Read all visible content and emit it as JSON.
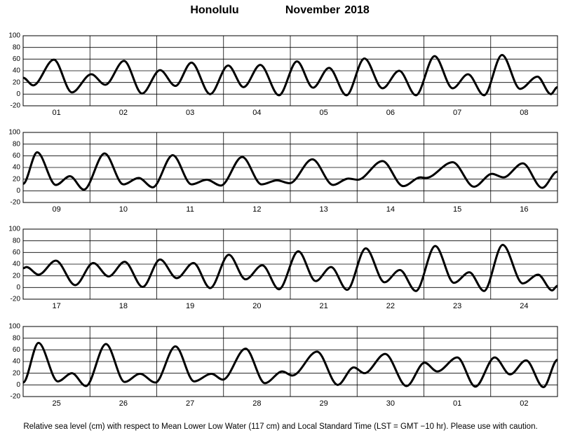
{
  "title": {
    "place": "Honolulu",
    "month": "November",
    "year": "2018"
  },
  "footnote": "Relative sea level (cm) with respect to Mean Lower Low Water (117 cm) and Local Standard Time (LST = GMT −10 hr). Please use with caution.",
  "chart_data": [
    {
      "type": "line",
      "color": "#000000",
      "grid": true,
      "xlim": [
        0,
        8
      ],
      "ylim": [
        -20,
        100
      ],
      "yticks": [
        -20,
        0,
        20,
        40,
        60,
        80,
        100
      ],
      "xticks": [
        {
          "value": 0.5,
          "label": "01"
        },
        {
          "value": 1.5,
          "label": "02"
        },
        {
          "value": 2.5,
          "label": "03"
        },
        {
          "value": 3.5,
          "label": "04"
        },
        {
          "value": 4.5,
          "label": "05"
        },
        {
          "value": 5.5,
          "label": "06"
        },
        {
          "value": 6.5,
          "label": "07"
        },
        {
          "value": 7.5,
          "label": "08"
        }
      ],
      "x": [
        0,
        0.15,
        0.46,
        0.73,
        1.02,
        1.23,
        1.51,
        1.78,
        2.05,
        2.28,
        2.52,
        2.8,
        3.07,
        3.3,
        3.55,
        3.83,
        4.1,
        4.34,
        4.58,
        4.84,
        5.11,
        5.38,
        5.63,
        5.88,
        6.16,
        6.43,
        6.66,
        6.9,
        7.17,
        7.44,
        7.7,
        7.9,
        8
      ],
      "values": [
        28,
        15,
        59,
        3,
        34,
        16,
        57,
        1,
        41,
        14,
        54,
        0,
        49,
        12,
        50,
        -2,
        56,
        11,
        45,
        -2,
        61,
        10,
        40,
        -2,
        65,
        10,
        34,
        -2,
        67,
        9,
        30,
        0,
        12
      ]
    },
    {
      "type": "line",
      "color": "#000000",
      "grid": true,
      "xlim": [
        0,
        8
      ],
      "ylim": [
        -20,
        100
      ],
      "yticks": [
        -20,
        0,
        20,
        40,
        60,
        80,
        100
      ],
      "xticks": [
        {
          "value": 0.5,
          "label": "09"
        },
        {
          "value": 1.5,
          "label": "10"
        },
        {
          "value": 2.5,
          "label": "11"
        },
        {
          "value": 3.5,
          "label": "12"
        },
        {
          "value": 4.5,
          "label": "13"
        },
        {
          "value": 5.5,
          "label": "14"
        },
        {
          "value": 6.5,
          "label": "15"
        },
        {
          "value": 7.5,
          "label": "16"
        }
      ],
      "x": [
        0,
        0.21,
        0.49,
        0.7,
        0.91,
        1.22,
        1.5,
        1.73,
        1.94,
        2.24,
        2.52,
        2.75,
        2.96,
        3.28,
        3.57,
        3.8,
        3.99,
        4.33,
        4.64,
        4.87,
        5.01,
        5.38,
        5.69,
        5.95,
        6.03,
        6.43,
        6.75,
        7.02,
        7.19,
        7.48,
        7.77,
        8
      ],
      "values": [
        12,
        66,
        10,
        25,
        2,
        64,
        11,
        22,
        6,
        61,
        11,
        19,
        9,
        58,
        11,
        18,
        13,
        54,
        10,
        21,
        19,
        51,
        8,
        23,
        22,
        49,
        7,
        29,
        23,
        47,
        5,
        33
      ]
    },
    {
      "type": "line",
      "color": "#000000",
      "grid": true,
      "xlim": [
        0,
        8
      ],
      "ylim": [
        -20,
        100
      ],
      "yticks": [
        -20,
        0,
        20,
        40,
        60,
        80,
        100
      ],
      "xticks": [
        {
          "value": 0.5,
          "label": "17"
        },
        {
          "value": 1.5,
          "label": "18"
        },
        {
          "value": 2.5,
          "label": "19"
        },
        {
          "value": 3.5,
          "label": "20"
        },
        {
          "value": 4.5,
          "label": "21"
        },
        {
          "value": 5.5,
          "label": "22"
        },
        {
          "value": 6.5,
          "label": "23"
        },
        {
          "value": 7.5,
          "label": "24"
        }
      ],
      "x": [
        0,
        0.05,
        0.23,
        0.49,
        0.78,
        1.05,
        1.28,
        1.52,
        1.79,
        2.05,
        2.3,
        2.55,
        2.8,
        3.08,
        3.33,
        3.58,
        3.83,
        4.12,
        4.38,
        4.61,
        4.85,
        5.13,
        5.41,
        5.64,
        5.88,
        6.17,
        6.45,
        6.68,
        6.9,
        7.18,
        7.48,
        7.71,
        7.92,
        8
      ],
      "values": [
        33,
        35,
        22,
        46,
        4,
        42,
        19,
        44,
        1,
        48,
        16,
        42,
        -1,
        56,
        14,
        38,
        -3,
        62,
        11,
        35,
        -4,
        67,
        9,
        30,
        -6,
        71,
        8,
        26,
        -6,
        73,
        7,
        22,
        -5,
        3
      ]
    },
    {
      "type": "line",
      "color": "#000000",
      "grid": true,
      "xlim": [
        0,
        8
      ],
      "ylim": [
        -20,
        100
      ],
      "yticks": [
        -20,
        0,
        20,
        40,
        60,
        80,
        100
      ],
      "xticks": [
        {
          "value": 0.5,
          "label": "25"
        },
        {
          "value": 1.5,
          "label": "26"
        },
        {
          "value": 2.5,
          "label": "27"
        },
        {
          "value": 3.5,
          "label": "28"
        },
        {
          "value": 4.5,
          "label": "29"
        },
        {
          "value": 5.5,
          "label": "30"
        },
        {
          "value": 6.5,
          "label": "01"
        },
        {
          "value": 7.5,
          "label": "02"
        }
      ],
      "x": [
        0,
        0.23,
        0.52,
        0.73,
        0.94,
        1.24,
        1.52,
        1.75,
        1.98,
        2.28,
        2.56,
        2.82,
        2.99,
        3.33,
        3.62,
        3.88,
        4.03,
        4.4,
        4.71,
        4.95,
        5.11,
        5.42,
        5.74,
        6.01,
        6.2,
        6.5,
        6.77,
        7.06,
        7.29,
        7.53,
        7.79,
        8
      ],
      "values": [
        4,
        72,
        6,
        20,
        -2,
        70,
        5,
        19,
        4,
        66,
        6,
        19,
        9,
        62,
        3,
        23,
        16,
        57,
        0,
        30,
        20,
        53,
        -2,
        38,
        23,
        47,
        -3,
        47,
        18,
        42,
        -4,
        43
      ]
    }
  ]
}
